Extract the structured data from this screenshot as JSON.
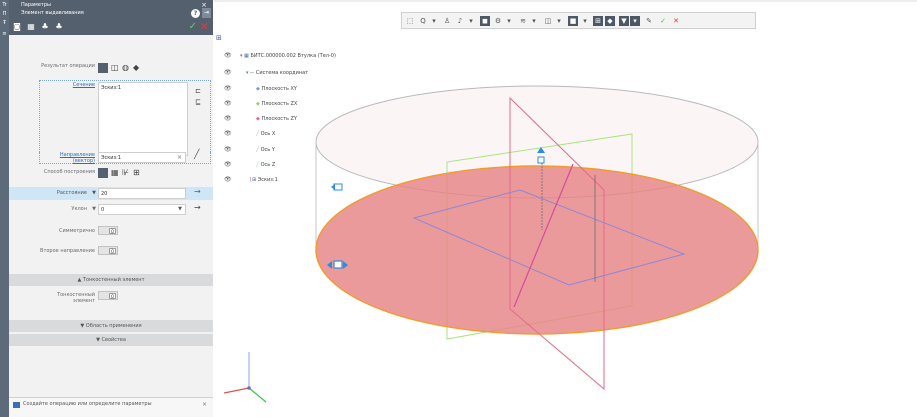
{
  "strip": {
    "icons": [
      "Tr",
      "П",
      "Ŧ",
      "≡"
    ]
  },
  "panel": {
    "title": "Параметры",
    "subtitle": "Элемент выдавливания",
    "close": "×",
    "help": "?",
    "pin": "⇥",
    "ok": "✓",
    "cancel": "✕",
    "toolbar_icons": [
      "◙",
      "▦",
      "♣",
      "♣"
    ],
    "labels": {
      "result": "Результат операции",
      "sketch": "Сечение",
      "direction": "Направление (вектор)",
      "method": "Способ построения",
      "distance": "Расстояние",
      "angle": "Уклон",
      "symmetry": "Симметрично",
      "second_dir": "Второе направление",
      "thin_section": "Тонкостенный элемент",
      "thin_label": "Тонкостенный элемент",
      "scope_section": "Область применения",
      "props_section": "Свойства"
    },
    "sketch_value": "Эскиз:1",
    "direction_value": "Эскиз:1",
    "distance_value": "20",
    "angle_value": "0",
    "distance_arrow": "▼",
    "angle_arrow": "▼",
    "toggle_knob": "О",
    "hint_text": "Создайте операцию или определите параметры"
  },
  "viewport": {
    "toolbar_icons": [
      "⬚",
      "Q",
      "▾",
      "♙",
      "♪",
      "▾",
      "◼",
      "⚙",
      "▾",
      "≋",
      "▾",
      "◫",
      "▾",
      "■",
      "▾",
      "⊞",
      "◆",
      "▼",
      "▾",
      "✎",
      "✓",
      "✕"
    ],
    "tree": [
      {
        "text": "БИТС.000000.002 Втулка (Тел-0)"
      },
      {
        "text": "Система координат"
      },
      {
        "text": "Плоскость XY"
      },
      {
        "text": "Плоскость ZX"
      },
      {
        "text": "Плоскость ZY"
      },
      {
        "text": "Ось X"
      },
      {
        "text": "Ось Y"
      },
      {
        "text": "Ось Z"
      },
      {
        "text": "Эскиз:1"
      }
    ],
    "axis_labels": {
      "x": "x",
      "y": "y",
      "z": "z"
    },
    "colors": {
      "disk_fill": "#e68486",
      "disk_edge": "#f29b2a",
      "cylinder_line": "#b7b7b7",
      "plane_green": "#9be36f",
      "plane_pink": "#e56a8a",
      "plane_blue": "#8e86d6",
      "select_blue": "#2b8de0",
      "panel_dark": "#55606e"
    }
  }
}
